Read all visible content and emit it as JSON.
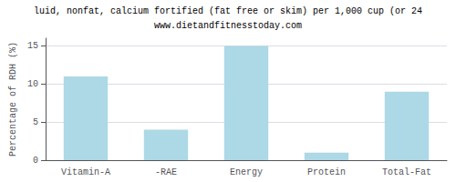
{
  "chart_data": {
    "type": "bar",
    "title": "luid, nonfat, calcium fortified (fat free or skim) per 1,000 cup (or 24",
    "subtitle": "www.dietandfitnesstoday.com",
    "categories": [
      "Vitamin-A",
      "-RAE",
      "Energy",
      "Protein",
      "Total-Fat"
    ],
    "values": [
      11.0,
      4.0,
      15.0,
      1.0,
      9.0
    ],
    "color": "#add8e6",
    "ylabel": "Percentage of RDH (%)",
    "ylim": [
      0,
      16
    ],
    "yticks": [
      0,
      5,
      10,
      15
    ],
    "grid": true
  }
}
